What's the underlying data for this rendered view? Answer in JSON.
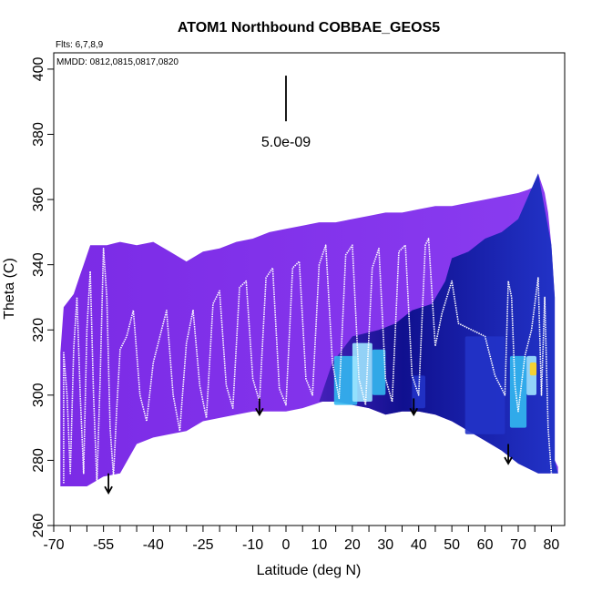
{
  "chart_data": {
    "type": "heatmap",
    "title": "ATOM1 Northbound COBBAE_GEOS5",
    "flights_note": "Flts: 6,7,8,9",
    "dates_note": "MMDD: 0812,0815,0817,0820",
    "xlabel": "Latitude (deg N)",
    "ylabel": "Theta (C)",
    "xlim": [
      -70,
      84
    ],
    "ylim": [
      260,
      405
    ],
    "x_ticks": [
      -70,
      -55,
      -40,
      -25,
      -10,
      0,
      10,
      20,
      30,
      40,
      50,
      60,
      70,
      80
    ],
    "x_minor_step": 5,
    "y_ticks": [
      260,
      280,
      300,
      320,
      340,
      360,
      380,
      400
    ],
    "scale_bar": {
      "value_label": "5.0e-09",
      "lat": 0,
      "theta_top": 398,
      "theta_bottom": 384
    },
    "colors": {
      "background_field": "#7b2be6",
      "field_light": "#8a3cf0",
      "field_deep_blue": "#10108f",
      "field_mid_blue": "#2233c8",
      "field_cyan": "#33b8f0",
      "field_light_cyan": "#9fe6ff",
      "field_yellow": "#ffd21f",
      "flight_track": "#ffffff",
      "arrow": "#000000"
    },
    "envelope_top": [
      [
        -68,
        313
      ],
      [
        -67,
        327
      ],
      [
        -64,
        331
      ],
      [
        -62,
        337
      ],
      [
        -61,
        340
      ],
      [
        -59,
        346
      ],
      [
        -54,
        346
      ],
      [
        -50,
        347
      ],
      [
        -45,
        346
      ],
      [
        -40,
        347
      ],
      [
        -35,
        344
      ],
      [
        -30,
        341
      ],
      [
        -25,
        344
      ],
      [
        -20,
        345
      ],
      [
        -15,
        347
      ],
      [
        -10,
        348
      ],
      [
        -5,
        350
      ],
      [
        0,
        351
      ],
      [
        5,
        352
      ],
      [
        10,
        353
      ],
      [
        15,
        353
      ],
      [
        20,
        354
      ],
      [
        25,
        355
      ],
      [
        30,
        356
      ],
      [
        35,
        356
      ],
      [
        40,
        357
      ],
      [
        45,
        358
      ],
      [
        50,
        358
      ],
      [
        55,
        359
      ],
      [
        60,
        360
      ],
      [
        65,
        361
      ],
      [
        70,
        362
      ],
      [
        73,
        363
      ],
      [
        75,
        364
      ],
      [
        76,
        368
      ],
      [
        78,
        362
      ],
      [
        79,
        356
      ],
      [
        80,
        346
      ],
      [
        81,
        330
      ],
      [
        81,
        280
      ],
      [
        82,
        278
      ]
    ],
    "envelope_bottom": [
      [
        82,
        276
      ],
      [
        76,
        276
      ],
      [
        70,
        279
      ],
      [
        65,
        283
      ],
      [
        60,
        286
      ],
      [
        55,
        289
      ],
      [
        50,
        292
      ],
      [
        45,
        294
      ],
      [
        40,
        295
      ],
      [
        35,
        295
      ],
      [
        30,
        294
      ],
      [
        25,
        296
      ],
      [
        20,
        297
      ],
      [
        15,
        298
      ],
      [
        11,
        298
      ],
      [
        5,
        296
      ],
      [
        0,
        295
      ],
      [
        -5,
        295
      ],
      [
        -10,
        295
      ],
      [
        -15,
        294
      ],
      [
        -20,
        293
      ],
      [
        -25,
        292
      ],
      [
        -30,
        289
      ],
      [
        -35,
        288
      ],
      [
        -40,
        287
      ],
      [
        -45,
        285
      ],
      [
        -50,
        276
      ],
      [
        -55,
        275
      ],
      [
        -60,
        272
      ],
      [
        -64,
        272
      ],
      [
        -68,
        272
      ]
    ],
    "blue_region_outline": [
      [
        10,
        298
      ],
      [
        14,
        310
      ],
      [
        20,
        318
      ],
      [
        28,
        320
      ],
      [
        33,
        322
      ],
      [
        38,
        326
      ],
      [
        44,
        328
      ],
      [
        48,
        335
      ],
      [
        50,
        342
      ],
      [
        55,
        344
      ],
      [
        60,
        348
      ],
      [
        65,
        350
      ],
      [
        70,
        354
      ],
      [
        76,
        368
      ],
      [
        80,
        346
      ],
      [
        81,
        330
      ],
      [
        81,
        280
      ],
      [
        82,
        276
      ],
      [
        76,
        276
      ],
      [
        70,
        279
      ],
      [
        65,
        283
      ],
      [
        60,
        286
      ],
      [
        55,
        289
      ],
      [
        50,
        292
      ],
      [
        45,
        294
      ],
      [
        40,
        295
      ],
      [
        35,
        295
      ],
      [
        30,
        294
      ],
      [
        25,
        296
      ],
      [
        20,
        297
      ],
      [
        15,
        298
      ]
    ],
    "enhancement_patches": [
      {
        "lat": 18,
        "theta_lo": 297,
        "theta_hi": 312,
        "width": 7,
        "color_key": "field_cyan"
      },
      {
        "lat": 23,
        "theta_lo": 298,
        "theta_hi": 316,
        "width": 6,
        "color_key": "field_light_cyan"
      },
      {
        "lat": 28,
        "theta_lo": 300,
        "theta_hi": 314,
        "width": 4,
        "color_key": "field_cyan"
      },
      {
        "lat": 40,
        "theta_lo": 296,
        "theta_hi": 306,
        "width": 4,
        "color_key": "field_mid_blue"
      },
      {
        "lat": 60,
        "theta_lo": 288,
        "theta_hi": 318,
        "width": 12,
        "color_key": "field_mid_blue"
      },
      {
        "lat": 70,
        "theta_lo": 290,
        "theta_hi": 312,
        "width": 5,
        "color_key": "field_cyan"
      },
      {
        "lat": 74,
        "theta_lo": 300,
        "theta_hi": 312,
        "width": 3,
        "color_key": "field_light_cyan"
      },
      {
        "lat": 74.5,
        "theta_lo": 306,
        "theta_hi": 310,
        "width": 2,
        "color_key": "field_yellow"
      }
    ],
    "flight_track": [
      [
        -67,
        273
      ],
      [
        -67,
        313
      ],
      [
        -66,
        300
      ],
      [
        -65,
        276
      ],
      [
        -64,
        314
      ],
      [
        -63,
        330
      ],
      [
        -62,
        300
      ],
      [
        -61,
        276
      ],
      [
        -60,
        320
      ],
      [
        -59,
        338
      ],
      [
        -58,
        300
      ],
      [
        -57,
        273
      ],
      [
        -56,
        305
      ],
      [
        -55,
        345
      ],
      [
        -54,
        330
      ],
      [
        -53,
        290
      ],
      [
        -52,
        275
      ],
      [
        -51,
        296
      ],
      [
        -50,
        314
      ],
      [
        -48,
        318
      ],
      [
        -46,
        326
      ],
      [
        -44,
        300
      ],
      [
        -42,
        292
      ],
      [
        -40,
        310
      ],
      [
        -38,
        318
      ],
      [
        -36,
        326
      ],
      [
        -34,
        300
      ],
      [
        -32,
        289
      ],
      [
        -30,
        316
      ],
      [
        -28,
        326
      ],
      [
        -26,
        303
      ],
      [
        -24,
        293
      ],
      [
        -22,
        328
      ],
      [
        -20,
        332
      ],
      [
        -18,
        303
      ],
      [
        -16,
        296
      ],
      [
        -14,
        333
      ],
      [
        -12,
        335
      ],
      [
        -10,
        305
      ],
      [
        -8,
        298
      ],
      [
        -6,
        336
      ],
      [
        -4,
        339
      ],
      [
        -2,
        302
      ],
      [
        0,
        297
      ],
      [
        2,
        339
      ],
      [
        4,
        341
      ],
      [
        6,
        305
      ],
      [
        8,
        300
      ],
      [
        10,
        340
      ],
      [
        12,
        346
      ],
      [
        14,
        310
      ],
      [
        16,
        299
      ],
      [
        18,
        343
      ],
      [
        20,
        346
      ],
      [
        22,
        305
      ],
      [
        24,
        297
      ],
      [
        26,
        339
      ],
      [
        28,
        345
      ],
      [
        30,
        305
      ],
      [
        32,
        298
      ],
      [
        34,
        344
      ],
      [
        36,
        346
      ],
      [
        38,
        306
      ],
      [
        40,
        300
      ],
      [
        42,
        346
      ],
      [
        43,
        348
      ],
      [
        45,
        315
      ],
      [
        47,
        325
      ],
      [
        50,
        335
      ],
      [
        52,
        322
      ],
      [
        56,
        320
      ],
      [
        60,
        318
      ],
      [
        63,
        306
      ],
      [
        66,
        300
      ],
      [
        67,
        335
      ],
      [
        68,
        330
      ],
      [
        69,
        303
      ],
      [
        70,
        295
      ],
      [
        72,
        312
      ],
      [
        74,
        320
      ],
      [
        76,
        336
      ],
      [
        77,
        300
      ],
      [
        78,
        330
      ],
      [
        79,
        290
      ],
      [
        80,
        276
      ]
    ],
    "arrows": [
      {
        "lat": -53.5,
        "theta_top": 276,
        "theta_tip": 270
      },
      {
        "lat": -8,
        "theta_top": 299,
        "theta_tip": 294
      },
      {
        "lat": 38.5,
        "theta_top": 299,
        "theta_tip": 294
      },
      {
        "lat": 67,
        "theta_top": 285,
        "theta_tip": 279
      }
    ]
  }
}
